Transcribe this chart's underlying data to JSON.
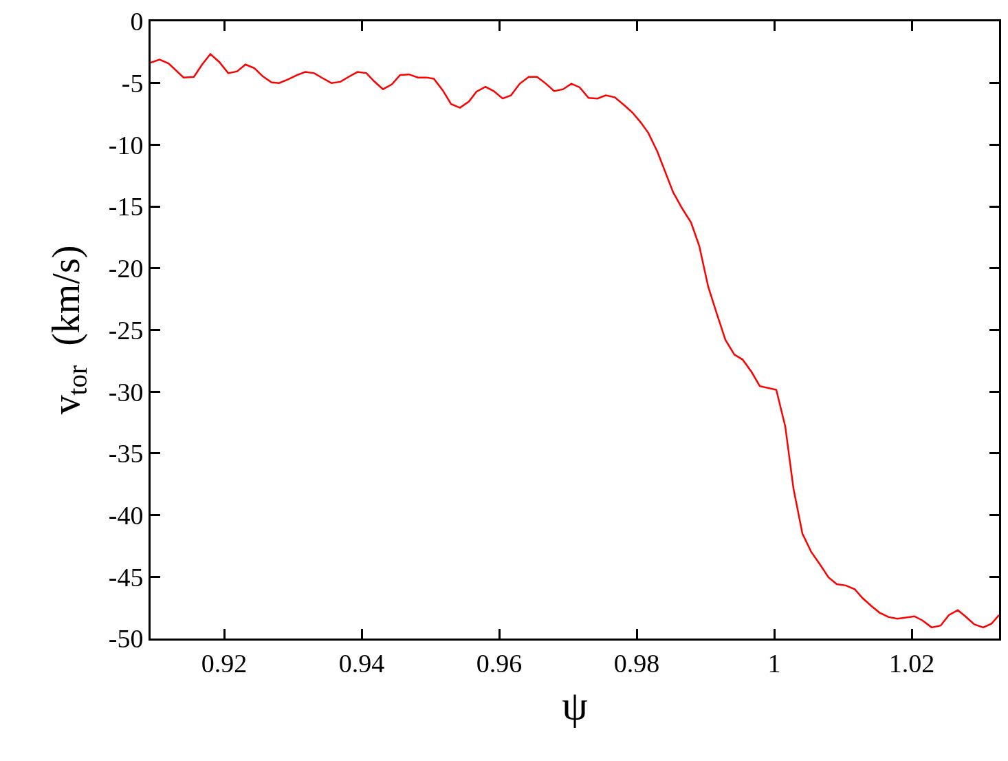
{
  "chart_data": {
    "type": "line",
    "xlabel": "ψ",
    "ylabel": "v$_{tor}$  (km/s)",
    "x": [
      0.9093,
      0.9106,
      0.9119,
      0.9141,
      0.9156,
      0.9168,
      0.918,
      0.9193,
      0.9206,
      0.9219,
      0.9231,
      0.9244,
      0.9256,
      0.9269,
      0.928,
      0.9293,
      0.9306,
      0.9318,
      0.9331,
      0.9343,
      0.9356,
      0.9369,
      0.9381,
      0.9394,
      0.9407,
      0.9418,
      0.9431,
      0.9444,
      0.9456,
      0.9469,
      0.9482,
      0.9494,
      0.9505,
      0.9518,
      0.953,
      0.9543,
      0.9556,
      0.9567,
      0.958,
      0.9592,
      0.9605,
      0.9617,
      0.963,
      0.9643,
      0.9655,
      0.9668,
      0.968,
      0.9693,
      0.9705,
      0.9717,
      0.973,
      0.9743,
      0.9755,
      0.9768,
      0.9782,
      0.9794,
      0.9806,
      0.9817,
      0.983,
      0.9853,
      0.9866,
      0.9879,
      0.9891,
      0.9904,
      0.9916,
      0.9929,
      0.9942,
      0.9954,
      0.9967,
      0.9979,
      1.0003,
      1.0016,
      1.0028,
      1.0041,
      1.0054,
      1.0066,
      1.0079,
      1.0091,
      1.0104,
      1.0117,
      1.0128,
      1.0141,
      1.0153,
      1.0166,
      1.0179,
      1.0204,
      1.0216,
      1.0229,
      1.0242,
      1.0254,
      1.0267,
      1.0278,
      1.0291,
      1.0304,
      1.0316,
      1.0327
    ],
    "series": [
      {
        "color": "#ff0000",
        "values": [
          -3.35,
          -3.1,
          -3.4,
          -4.55,
          -4.5,
          -3.5,
          -2.65,
          -3.3,
          -4.2,
          -4.05,
          -3.5,
          -3.8,
          -4.45,
          -4.95,
          -5.0,
          -4.7,
          -4.35,
          -4.1,
          -4.2,
          -4.6,
          -5.0,
          -4.9,
          -4.5,
          -4.1,
          -4.2,
          -4.85,
          -5.5,
          -5.1,
          -4.35,
          -4.3,
          -4.55,
          -4.55,
          -4.65,
          -5.6,
          -6.7,
          -7.0,
          -6.5,
          -5.7,
          -5.3,
          -5.65,
          -6.25,
          -6.0,
          -5.05,
          -4.5,
          -4.5,
          -5.05,
          -5.65,
          -5.5,
          -5.05,
          -5.35,
          -6.2,
          -6.25,
          -6.0,
          -6.15,
          -6.8,
          -7.4,
          -8.2,
          -9.05,
          -10.55,
          -13.85,
          -15.15,
          -16.3,
          -18.2,
          -21.5,
          -23.6,
          -25.8,
          -27.0,
          -27.4,
          -28.4,
          -29.55,
          -29.85,
          -32.8,
          -37.85,
          -41.5,
          -43.0,
          -43.95,
          -45.05,
          -45.6,
          -45.7,
          -46.0,
          -46.7,
          -47.35,
          -47.9,
          -48.25,
          -48.4,
          -48.2,
          -48.55,
          -49.1,
          -48.95,
          -48.1,
          -47.7,
          -48.2,
          -48.85,
          -49.1,
          -48.8,
          -48.1
        ]
      }
    ],
    "xlim": [
      0.9093,
      1.0327
    ],
    "xticks": [
      0.92,
      0.94,
      0.96,
      0.98,
      1,
      1.02
    ],
    "ylim": [
      -50,
      0
    ],
    "yticks": [
      -50,
      -45,
      -40,
      -35,
      -30,
      -25,
      -20,
      -15,
      -10,
      -5,
      0
    ],
    "marker": "none",
    "line_style": "solid"
  }
}
